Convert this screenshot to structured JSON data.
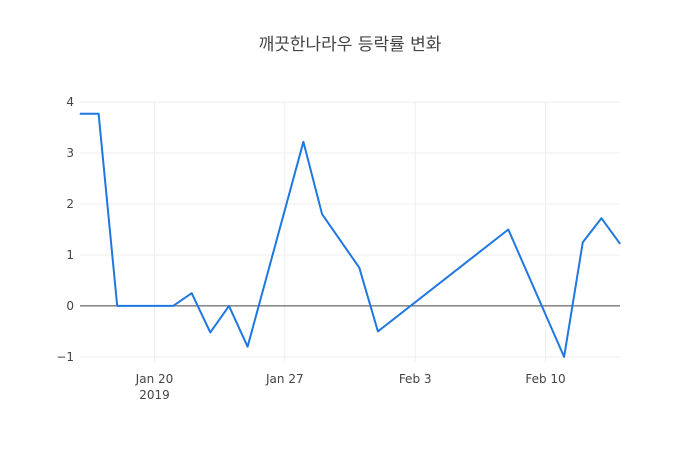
{
  "chart_data": {
    "type": "line",
    "title": "깨끗한나라우 등락률 변화",
    "xlabel": "",
    "ylabel": "",
    "x_range": [
      "2019-01-16",
      "2019-02-14"
    ],
    "ylim": [
      -1.1,
      4.0
    ],
    "grid": true,
    "x_ticks": [
      {
        "date": "2019-01-20",
        "label": "Jan 20",
        "sublabel": "2019"
      },
      {
        "date": "2019-01-27",
        "label": "Jan 27",
        "sublabel": ""
      },
      {
        "date": "2019-02-03",
        "label": "Feb 3",
        "sublabel": ""
      },
      {
        "date": "2019-02-10",
        "label": "Feb 10",
        "sublabel": ""
      }
    ],
    "y_ticks": [
      {
        "value": 4,
        "label": "4"
      },
      {
        "value": 3,
        "label": "3"
      },
      {
        "value": 2,
        "label": "2"
      },
      {
        "value": 1,
        "label": "1"
      },
      {
        "value": 0,
        "label": "0"
      },
      {
        "value": -1,
        "label": "−1"
      }
    ],
    "series": [
      {
        "color": "#1f77e0",
        "points": [
          {
            "x": "2019-01-16",
            "y": 3.77
          },
          {
            "x": "2019-01-17",
            "y": 3.77
          },
          {
            "x": "2019-01-18",
            "y": 0.0
          },
          {
            "x": "2019-01-21",
            "y": 0.0
          },
          {
            "x": "2019-01-22",
            "y": 0.25
          },
          {
            "x": "2019-01-23",
            "y": -0.52
          },
          {
            "x": "2019-01-24",
            "y": 0.0
          },
          {
            "x": "2019-01-25",
            "y": -0.8
          },
          {
            "x": "2019-01-28",
            "y": 3.22
          },
          {
            "x": "2019-01-29",
            "y": 1.8
          },
          {
            "x": "2019-01-31",
            "y": 0.75
          },
          {
            "x": "2019-02-01",
            "y": -0.5
          },
          {
            "x": "2019-02-08",
            "y": 1.5
          },
          {
            "x": "2019-02-11",
            "y": -1.0
          },
          {
            "x": "2019-02-12",
            "y": 1.25
          },
          {
            "x": "2019-02-13",
            "y": 1.72
          },
          {
            "x": "2019-02-14",
            "y": 1.22
          }
        ]
      }
    ]
  }
}
